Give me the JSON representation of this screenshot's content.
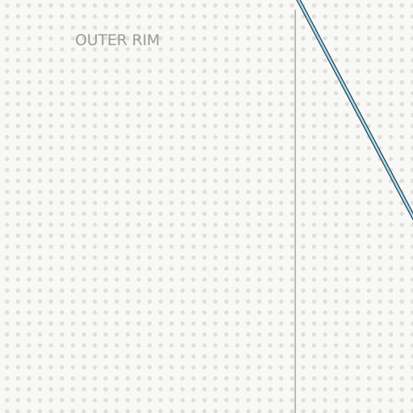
{
  "map": {
    "region_label": "OUTER RIM",
    "colors": {
      "background": "#f8f8f6",
      "grid_dot": "#dedfd6",
      "boundary_line": "#b9b9b9",
      "route_fill": "#a8dcef",
      "route_outline": "#1f3a4a",
      "label_text": "#9b9b9b"
    }
  }
}
